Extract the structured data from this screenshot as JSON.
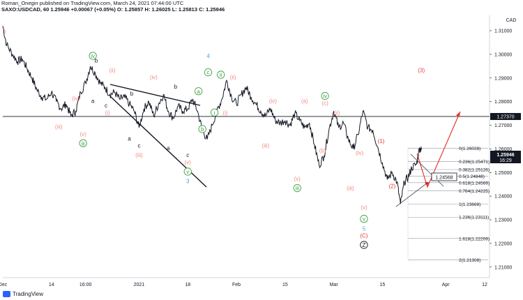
{
  "header": {
    "line1": "Roman_Onegin published on TradingView.com, March 24, 2021 07:44:00 UTC",
    "line2": "SAXO:USDCAD, 60  1.25946  +0.00067 (+0.05%)  O: 1.25857  H: 1.26025  L: 1.25813  C: 1.25946"
  },
  "footer": {
    "brand": "TradingView"
  },
  "chart_data": {
    "type": "line",
    "currency": "CAD",
    "symbol": "SAXO:USDCAD",
    "interval": "60",
    "ylim": [
      1.2055,
      1.3165
    ],
    "y_ticks": [
      1.21,
      1.22,
      1.23,
      1.24,
      1.25,
      1.26,
      1.27,
      1.28,
      1.29,
      1.3,
      1.31
    ],
    "y_tick_labels": [
      "1.21000",
      "1.22000",
      "1.23000",
      "1.24000",
      "1.25000",
      "1.26000",
      "1.27000",
      "1.28000",
      "1.29000",
      "1.30000",
      "1.31000"
    ],
    "x_ticks": [
      {
        "x": 0,
        "label": "Dec"
      },
      {
        "x": 10,
        "label": "14"
      },
      {
        "x": 17,
        "label": "16:00"
      },
      {
        "x": 28,
        "label": "2021"
      },
      {
        "x": 38,
        "label": "18"
      },
      {
        "x": 48,
        "label": "Feb"
      },
      {
        "x": 58,
        "label": "15"
      },
      {
        "x": 68,
        "label": "Mar"
      },
      {
        "x": 78,
        "label": "15"
      },
      {
        "x": 91,
        "label": "Apr"
      },
      {
        "x": 99,
        "label": "12"
      }
    ],
    "series": [
      {
        "points": [
          [
            0,
            1.312
          ],
          [
            0.8,
            1.304
          ],
          [
            2,
            1.3
          ],
          [
            3,
            1.297
          ],
          [
            4,
            1.298
          ],
          [
            5,
            1.294
          ],
          [
            6,
            1.29
          ],
          [
            7,
            1.285
          ],
          [
            8,
            1.282
          ],
          [
            9,
            1.281
          ],
          [
            10,
            1.284
          ],
          [
            11,
            1.28
          ],
          [
            12,
            1.277
          ],
          [
            13,
            1.279
          ],
          [
            14,
            1.274
          ],
          [
            15,
            1.276
          ],
          [
            16,
            1.284
          ],
          [
            17,
            1.288
          ],
          [
            18,
            1.295
          ],
          [
            19,
            1.292
          ],
          [
            20,
            1.288
          ],
          [
            21,
            1.286
          ],
          [
            22,
            1.283
          ],
          [
            23,
            1.284
          ],
          [
            24,
            1.281
          ],
          [
            25,
            1.282
          ],
          [
            26,
            1.279
          ],
          [
            27,
            1.276
          ],
          [
            28,
            1.269
          ],
          [
            29,
            1.277
          ],
          [
            30,
            1.28
          ],
          [
            31,
            1.274
          ],
          [
            32,
            1.279
          ],
          [
            33,
            1.283
          ],
          [
            34,
            1.276
          ],
          [
            35,
            1.273
          ],
          [
            36,
            1.278
          ],
          [
            37,
            1.276
          ],
          [
            38,
            1.277
          ],
          [
            39,
            1.281
          ],
          [
            40,
            1.276
          ],
          [
            41,
            1.268
          ],
          [
            42,
            1.264
          ],
          [
            43,
            1.27
          ],
          [
            44,
            1.276
          ],
          [
            45,
            1.281
          ],
          [
            46,
            1.289
          ],
          [
            47,
            1.282
          ],
          [
            48,
            1.279
          ],
          [
            49,
            1.283
          ],
          [
            50,
            1.286
          ],
          [
            51,
            1.282
          ],
          [
            52,
            1.279
          ],
          [
            53,
            1.276
          ],
          [
            54,
            1.274
          ],
          [
            55,
            1.277
          ],
          [
            56,
            1.272
          ],
          [
            57,
            1.271
          ],
          [
            58,
            1.272
          ],
          [
            59,
            1.27
          ],
          [
            60,
            1.275
          ],
          [
            61,
            1.272
          ],
          [
            62,
            1.269
          ],
          [
            63,
            1.271
          ],
          [
            64,
            1.262
          ],
          [
            65,
            1.253
          ],
          [
            66,
            1.257
          ],
          [
            67,
            1.268
          ],
          [
            68,
            1.276
          ],
          [
            69,
            1.269
          ],
          [
            70,
            1.271
          ],
          [
            71,
            1.264
          ],
          [
            72,
            1.26
          ],
          [
            73,
            1.266
          ],
          [
            74,
            1.276
          ],
          [
            75,
            1.269
          ],
          [
            76,
            1.268
          ],
          [
            77,
            1.261
          ],
          [
            78,
            1.254
          ],
          [
            79,
            1.247
          ],
          [
            80,
            1.25
          ],
          [
            81,
            1.246
          ],
          [
            81.7,
            1.2367
          ],
          [
            82.5,
            1.246
          ],
          [
            83.3,
            1.248
          ],
          [
            84,
            1.252
          ],
          [
            85,
            1.2535
          ],
          [
            85.6,
            1.26028
          ],
          [
            86,
            1.2595
          ]
        ]
      }
    ],
    "current_price": "1.25946",
    "current_time": "16:29",
    "level_price": "1.27370",
    "cursor_price": "1.24568",
    "fib_levels": [
      {
        "label": "0(1.26028)",
        "value": 1.26028
      },
      {
        "label": "0.236(1.25471)",
        "value": 1.25471
      },
      {
        "label": "0.382(1.25126)",
        "value": 1.25126
      },
      {
        "label": "0.5(1.24848)",
        "value": 1.24848
      },
      {
        "label": "0.618(1.24569)",
        "value": 1.24569
      },
      {
        "label": "0.764(1.24225)",
        "value": 1.24225
      },
      {
        "label": "1(1.23668)",
        "value": 1.23668
      },
      {
        "label": "1.236(1.23111)",
        "value": 1.23111
      },
      {
        "label": "1.618(1.22209)",
        "value": 1.22209
      },
      {
        "label": "2(1.21308)",
        "value": 1.21308
      }
    ],
    "wave_labels": [
      {
        "text": "i)",
        "x": 0.3,
        "y": 1.309,
        "color": "#f28b82",
        "style": "plain"
      },
      {
        "text": "iv",
        "x": 18.5,
        "y": 1.2985,
        "color": "#43a047",
        "style": "circle"
      },
      {
        "text": "b",
        "x": 19.2,
        "y": 1.2965,
        "color": "#131722",
        "style": "plain"
      },
      {
        "text": "(ii)",
        "x": 22.5,
        "y": 1.2925,
        "color": "#f28b82",
        "style": "plain"
      },
      {
        "text": "(iv)",
        "x": 15,
        "y": 1.2805,
        "color": "#f28b82",
        "style": "plain"
      },
      {
        "text": "a",
        "x": 18.5,
        "y": 1.2795,
        "color": "#131722",
        "style": "plain"
      },
      {
        "text": "(i)",
        "x": 21.5,
        "y": 1.2745,
        "color": "#f28b82",
        "style": "plain"
      },
      {
        "text": "(iii)",
        "x": 11.5,
        "y": 1.2685,
        "color": "#f28b82",
        "style": "plain"
      },
      {
        "text": "(v)",
        "x": 16.5,
        "y": 1.2655,
        "color": "#f28b82",
        "style": "plain"
      },
      {
        "text": "iii",
        "x": 16.5,
        "y": 1.2615,
        "color": "#43a047",
        "style": "circle"
      },
      {
        "text": "c",
        "x": 21.2,
        "y": 1.2775,
        "color": "#131722",
        "style": "plain"
      },
      {
        "text": "b",
        "x": 26.5,
        "y": 1.2825,
        "color": "#131722",
        "style": "plain"
      },
      {
        "text": "(iv)",
        "x": 31,
        "y": 1.2895,
        "color": "#f28b82",
        "style": "plain"
      },
      {
        "text": "b",
        "x": 35.5,
        "y": 1.2855,
        "color": "#131722",
        "style": "plain"
      },
      {
        "text": "a",
        "x": 26,
        "y": 1.2635,
        "color": "#131722",
        "style": "plain"
      },
      {
        "text": "c",
        "x": 28,
        "y": 1.2605,
        "color": "#131722",
        "style": "plain"
      },
      {
        "text": "(iii)",
        "x": 28,
        "y": 1.2565,
        "color": "#f28b82",
        "style": "plain"
      },
      {
        "text": "a",
        "x": 34,
        "y": 1.2595,
        "color": "#131722",
        "style": "plain"
      },
      {
        "text": "c",
        "x": 38,
        "y": 1.2565,
        "color": "#131722",
        "style": "plain"
      },
      {
        "text": "(v)",
        "x": 38,
        "y": 1.2535,
        "color": "#f28b82",
        "style": "plain"
      },
      {
        "text": "v",
        "x": 38,
        "y": 1.2495,
        "color": "#43a047",
        "style": "circle"
      },
      {
        "text": "3",
        "x": 38,
        "y": 1.2455,
        "color": "#4aa3df",
        "style": "plain"
      },
      {
        "text": "4",
        "x": 42.2,
        "y": 1.2985,
        "color": "#4aa3df",
        "style": "plain"
      },
      {
        "text": "c",
        "x": 42.2,
        "y": 1.2915,
        "color": "#43a047",
        "style": "circle"
      },
      {
        "text": "ii",
        "x": 44.8,
        "y": 1.2905,
        "color": "#43a047",
        "style": "circle"
      },
      {
        "text": "(ii)",
        "x": 47.3,
        "y": 1.2895,
        "color": "#f28b82",
        "style": "plain"
      },
      {
        "text": "a",
        "x": 40.2,
        "y": 1.2835,
        "color": "#43a047",
        "style": "circle"
      },
      {
        "text": "i",
        "x": 43.5,
        "y": 1.2745,
        "color": "#43a047",
        "style": "circle"
      },
      {
        "text": "(i)",
        "x": 45.7,
        "y": 1.2745,
        "color": "#f28b82",
        "style": "plain"
      },
      {
        "text": "b",
        "x": 41,
        "y": 1.2675,
        "color": "#43a047",
        "style": "circle"
      },
      {
        "text": "(iv)",
        "x": 55.5,
        "y": 1.2795,
        "color": "#f28b82",
        "style": "plain"
      },
      {
        "text": "(iii)",
        "x": 54,
        "y": 1.2605,
        "color": "#f28b82",
        "style": "plain"
      },
      {
        "text": "(a)",
        "x": 62,
        "y": 1.2795,
        "color": "#f28b82",
        "style": "plain"
      },
      {
        "text": "iv",
        "x": 66.2,
        "y": 1.2815,
        "color": "#43a047",
        "style": "circle"
      },
      {
        "text": "(c)",
        "x": 66.2,
        "y": 1.2785,
        "color": "#f28b82",
        "style": "plain"
      },
      {
        "text": "(ii)",
        "x": 68.6,
        "y": 1.2745,
        "color": "#f28b82",
        "style": "plain"
      },
      {
        "text": "(b)",
        "x": 65.7,
        "y": 1.2585,
        "color": "#f28b82",
        "style": "plain"
      },
      {
        "text": "(iv)",
        "x": 73.3,
        "y": 1.2575,
        "color": "#f28b82",
        "style": "plain"
      },
      {
        "text": "(v)",
        "x": 60.5,
        "y": 1.2465,
        "color": "#f28b82",
        "style": "plain"
      },
      {
        "text": "iii",
        "x": 60.5,
        "y": 1.2425,
        "color": "#43a047",
        "style": "circle"
      },
      {
        "text": "(iii)",
        "x": 71.4,
        "y": 1.2425,
        "color": "#f28b82",
        "style": "plain"
      },
      {
        "text": "(v)",
        "x": 74.2,
        "y": 1.2345,
        "color": "#f28b82",
        "style": "plain"
      },
      {
        "text": "v",
        "x": 74.2,
        "y": 1.2295,
        "color": "#43a047",
        "style": "circle"
      },
      {
        "text": "5",
        "x": 74.2,
        "y": 1.2255,
        "color": "#4aa3df",
        "style": "plain"
      },
      {
        "text": "(C)",
        "x": 74.2,
        "y": 1.2225,
        "color": "#e53935",
        "style": "plain"
      },
      {
        "text": "Z",
        "x": 74.2,
        "y": 1.2185,
        "color": "#131722",
        "style": "circle"
      },
      {
        "text": "(1)",
        "x": 77.7,
        "y": 1.2625,
        "color": "#e53935",
        "style": "plain"
      },
      {
        "text": "(2)",
        "x": 80,
        "y": 1.2435,
        "color": "#e53935",
        "style": "plain"
      },
      {
        "text": "(3)",
        "x": 86,
        "y": 1.2925,
        "color": "#e53935",
        "style": "plain"
      }
    ]
  }
}
